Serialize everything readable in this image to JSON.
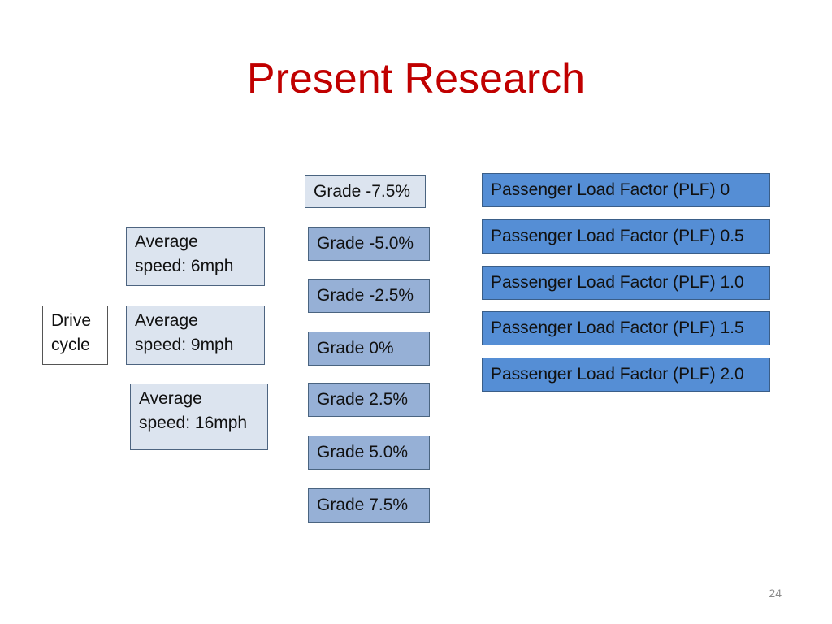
{
  "title": "Present Research",
  "drive_cycle": {
    "line1": "Drive",
    "line2": "cycle"
  },
  "speeds": [
    {
      "line1": "Average",
      "line2": "speed: 6mph"
    },
    {
      "line1": "Average",
      "line2": "speed: 9mph"
    },
    {
      "line1": "Average",
      "line2": "speed: 16mph"
    }
  ],
  "grades": [
    "Grade -7.5%",
    "Grade -5.0%",
    "Grade -2.5%",
    "Grade 0%",
    "Grade 2.5%",
    "Grade 5.0%",
    "Grade 7.5%"
  ],
  "plf": [
    "Passenger Load Factor (PLF) 0",
    "Passenger Load Factor (PLF) 0.5",
    "Passenger Load Factor (PLF) 1.0",
    "Passenger Load Factor (PLF) 1.5",
    "Passenger Load Factor (PLF) 2.0"
  ],
  "page_number": "24"
}
